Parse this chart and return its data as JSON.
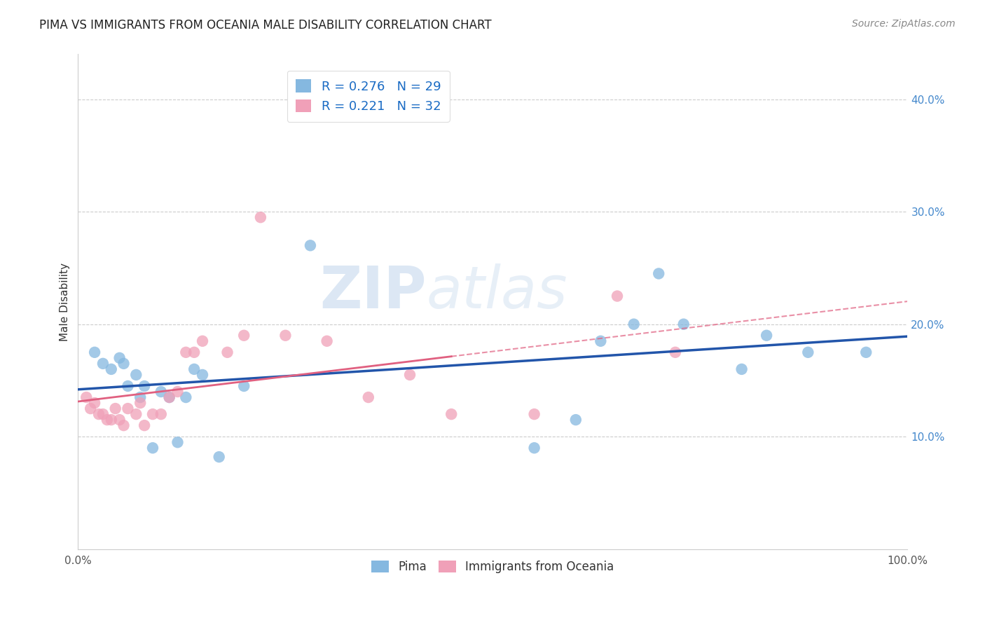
{
  "title": "PIMA VS IMMIGRANTS FROM OCEANIA MALE DISABILITY CORRELATION CHART",
  "source_text": "Source: ZipAtlas.com",
  "ylabel": "Male Disability",
  "xlim": [
    0.0,
    1.0
  ],
  "ylim": [
    0.0,
    0.44
  ],
  "xtick_positions": [
    0.0,
    0.1,
    0.2,
    0.3,
    0.4,
    0.5,
    0.6,
    0.7,
    0.8,
    0.9,
    1.0
  ],
  "ytick_positions": [
    0.1,
    0.2,
    0.3,
    0.4
  ],
  "ytick_labels": [
    "10.0%",
    "20.0%",
    "30.0%",
    "40.0%"
  ],
  "xtick_labels": [
    "0.0%",
    "",
    "",
    "",
    "",
    "",
    "",
    "",
    "",
    "",
    "100.0%"
  ],
  "pima_color": "#85b8e0",
  "oceania_color": "#f0a0b8",
  "pima_line_color": "#2255aa",
  "oceania_line_color": "#e06080",
  "legend_pima_R": "R = 0.276",
  "legend_pima_N": "N = 29",
  "legend_oceania_R": "R = 0.221",
  "legend_oceania_N": "N = 32",
  "watermark_zip": "ZIP",
  "watermark_atlas": "atlas",
  "pima_x": [
    0.02,
    0.03,
    0.04,
    0.05,
    0.055,
    0.06,
    0.07,
    0.075,
    0.08,
    0.09,
    0.1,
    0.11,
    0.12,
    0.13,
    0.14,
    0.15,
    0.17,
    0.2,
    0.28,
    0.55,
    0.6,
    0.63,
    0.67,
    0.7,
    0.73,
    0.8,
    0.83,
    0.88,
    0.95
  ],
  "pima_y": [
    0.175,
    0.165,
    0.16,
    0.17,
    0.165,
    0.145,
    0.155,
    0.135,
    0.145,
    0.09,
    0.14,
    0.135,
    0.095,
    0.135,
    0.16,
    0.155,
    0.082,
    0.145,
    0.27,
    0.09,
    0.115,
    0.185,
    0.2,
    0.245,
    0.2,
    0.16,
    0.19,
    0.175,
    0.175
  ],
  "oceania_x": [
    0.01,
    0.015,
    0.02,
    0.025,
    0.03,
    0.035,
    0.04,
    0.045,
    0.05,
    0.055,
    0.06,
    0.07,
    0.075,
    0.08,
    0.09,
    0.1,
    0.11,
    0.12,
    0.13,
    0.14,
    0.15,
    0.18,
    0.2,
    0.22,
    0.25,
    0.3,
    0.35,
    0.4,
    0.45,
    0.55,
    0.65,
    0.72
  ],
  "oceania_y": [
    0.135,
    0.125,
    0.13,
    0.12,
    0.12,
    0.115,
    0.115,
    0.125,
    0.115,
    0.11,
    0.125,
    0.12,
    0.13,
    0.11,
    0.12,
    0.12,
    0.135,
    0.14,
    0.175,
    0.175,
    0.185,
    0.175,
    0.19,
    0.295,
    0.19,
    0.185,
    0.135,
    0.155,
    0.12,
    0.12,
    0.225,
    0.175
  ],
  "background_color": "#ffffff",
  "grid_color": "#cccccc"
}
